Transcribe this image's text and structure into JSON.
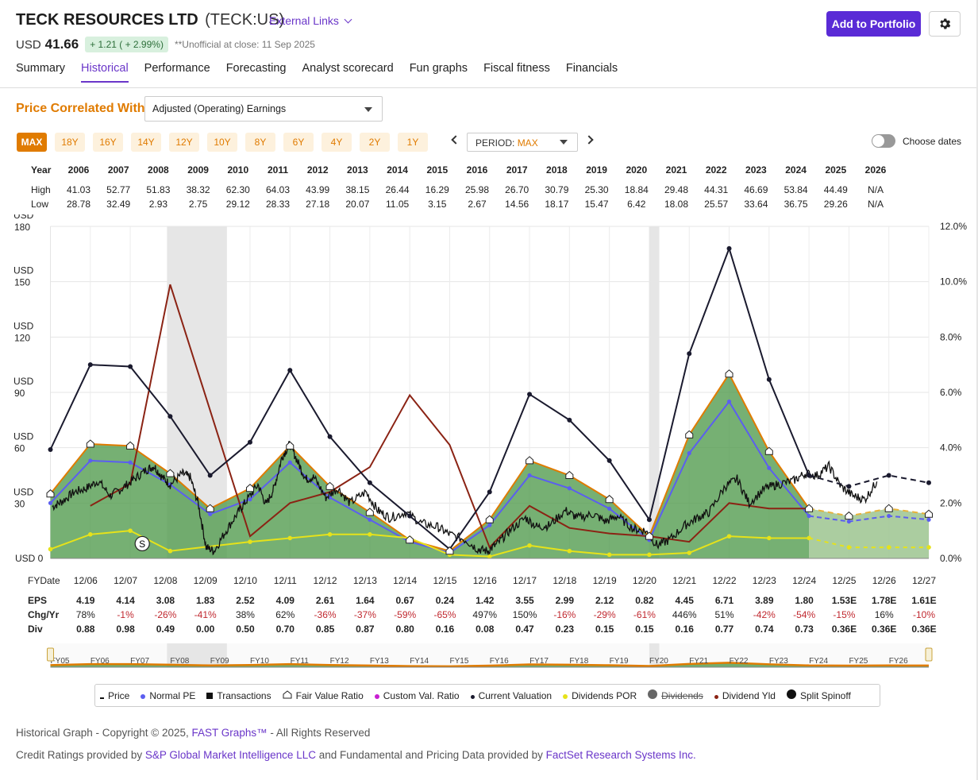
{
  "header": {
    "company": "TECK RESOURCES LTD",
    "ticker": "(TECK:US)",
    "external_links": "External Links",
    "currency": "USD",
    "price": "41.66",
    "change": "+ 1.21 ( + 2.99%)",
    "close_note": "**Unofficial at close: 11 Sep 2025",
    "add_button": "Add to Portfolio",
    "settings_icon": "gear-icon"
  },
  "tabs": [
    "Summary",
    "Historical",
    "Performance",
    "Forecasting",
    "Analyst scorecard",
    "Fun graphs",
    "Fiscal fitness",
    "Financials"
  ],
  "active_tab": "Historical",
  "controls": {
    "price_correlated_label": "Price Correlated With",
    "correlated_value": "Adjusted (Operating) Earnings",
    "range_buttons": [
      "MAX",
      "18Y",
      "16Y",
      "14Y",
      "12Y",
      "10Y",
      "8Y",
      "6Y",
      "4Y",
      "2Y",
      "1Y"
    ],
    "active_range": "MAX",
    "period_label": "PERIOD:",
    "period_value": "MAX",
    "choose_dates": "Choose dates"
  },
  "year_table": {
    "labels": {
      "year": "Year",
      "high": "High",
      "low": "Low"
    },
    "years": [
      "2006",
      "2007",
      "2008",
      "2009",
      "2010",
      "2011",
      "2012",
      "2013",
      "2014",
      "2015",
      "2016",
      "2017",
      "2018",
      "2019",
      "2020",
      "2021",
      "2022",
      "2023",
      "2024",
      "2025",
      "2026"
    ],
    "high": [
      "41.03",
      "52.77",
      "51.83",
      "38.32",
      "62.30",
      "64.03",
      "43.99",
      "38.15",
      "26.44",
      "16.29",
      "25.98",
      "26.70",
      "30.79",
      "25.30",
      "18.84",
      "29.48",
      "44.31",
      "46.69",
      "53.84",
      "44.49",
      "N/A"
    ],
    "low": [
      "28.78",
      "32.49",
      "2.93",
      "2.75",
      "29.12",
      "28.33",
      "27.18",
      "20.07",
      "11.05",
      "3.15",
      "2.67",
      "14.56",
      "18.17",
      "15.47",
      "6.42",
      "18.08",
      "25.57",
      "33.64",
      "36.75",
      "29.26",
      "N/A"
    ]
  },
  "chart_data": {
    "type": "line",
    "y_left_ticks": [
      {
        "top": "USD",
        "bottom": "180",
        "value": 180
      },
      {
        "top": "USD",
        "bottom": "150",
        "value": 150
      },
      {
        "top": "USD",
        "bottom": "120",
        "value": 120
      },
      {
        "top": "USD",
        "bottom": "90",
        "value": 90
      },
      {
        "top": "USD",
        "bottom": "60",
        "value": 60
      },
      {
        "top": "USD",
        "bottom": "30",
        "value": 30
      },
      {
        "top": "USD 0",
        "bottom": "",
        "value": 0
      }
    ],
    "ylim": [
      0,
      180
    ],
    "y_right_ticks": [
      "12.0%",
      "10.0%",
      "8.0%",
      "6.0%",
      "4.0%",
      "2.0%",
      "0.0%"
    ],
    "y2lim": [
      0,
      12
    ],
    "x_labels": [
      "12/06",
      "12/07",
      "12/08",
      "12/09",
      "12/10",
      "12/11",
      "12/12",
      "12/13",
      "12/14",
      "12/15",
      "12/16",
      "12/17",
      "12/18",
      "12/19",
      "12/20",
      "12/21",
      "12/22",
      "12/23",
      "12/24",
      "12/25",
      "12/26",
      "12/27"
    ],
    "x_numeric": [
      2006,
      2007,
      2008,
      2009,
      2010,
      2011,
      2012,
      2013,
      2014,
      2015,
      2016,
      2017,
      2018,
      2019,
      2020,
      2021,
      2022,
      2023,
      2024,
      2025,
      2026,
      2027
    ],
    "x_range": [
      2005,
      2027
    ],
    "recessions": [
      [
        2007.92,
        2009.42
      ],
      [
        2020.0,
        2020.25
      ]
    ],
    "fair_value": [
      [
        2005,
        35
      ],
      [
        2006,
        62
      ],
      [
        2007,
        61
      ],
      [
        2008,
        46
      ],
      [
        2009,
        27
      ],
      [
        2010,
        38
      ],
      [
        2011,
        61
      ],
      [
        2012,
        39
      ],
      [
        2013,
        25
      ],
      [
        2014,
        10
      ],
      [
        2015,
        4
      ],
      [
        2016,
        21
      ],
      [
        2017,
        53
      ],
      [
        2018,
        45
      ],
      [
        2019,
        32
      ],
      [
        2020,
        12
      ],
      [
        2021,
        67
      ],
      [
        2022,
        100
      ],
      [
        2023,
        58
      ],
      [
        2024,
        27
      ],
      [
        2025,
        23
      ],
      [
        2026,
        27
      ],
      [
        2027,
        24
      ]
    ],
    "fair_value_estimated_from": 2024,
    "normal_pe": [
      [
        2005,
        30
      ],
      [
        2006,
        53
      ],
      [
        2007,
        52
      ],
      [
        2008,
        40
      ],
      [
        2009,
        24
      ],
      [
        2010,
        32
      ],
      [
        2011,
        52
      ],
      [
        2012,
        33
      ],
      [
        2013,
        21
      ],
      [
        2014,
        9
      ],
      [
        2015,
        3
      ],
      [
        2016,
        18
      ],
      [
        2017,
        45
      ],
      [
        2018,
        38
      ],
      [
        2019,
        27
      ],
      [
        2020,
        10
      ],
      [
        2021,
        57
      ],
      [
        2022,
        85
      ],
      [
        2023,
        49
      ],
      [
        2024,
        23
      ],
      [
        2025,
        20
      ],
      [
        2026,
        23
      ],
      [
        2027,
        21
      ]
    ],
    "price": [
      [
        2005.05,
        28
      ],
      [
        2005.3,
        31
      ],
      [
        2005.6,
        36
      ],
      [
        2005.9,
        38
      ],
      [
        2006.2,
        42
      ],
      [
        2006.5,
        34
      ],
      [
        2006.8,
        38
      ],
      [
        2007.1,
        43
      ],
      [
        2007.4,
        48
      ],
      [
        2007.6,
        50
      ],
      [
        2007.8,
        44
      ],
      [
        2008.0,
        40
      ],
      [
        2008.3,
        46
      ],
      [
        2008.5,
        44
      ],
      [
        2008.7,
        30
      ],
      [
        2008.9,
        6
      ],
      [
        2009.1,
        4
      ],
      [
        2009.4,
        15
      ],
      [
        2009.7,
        25
      ],
      [
        2009.9,
        31
      ],
      [
        2010.2,
        40
      ],
      [
        2010.4,
        29
      ],
      [
        2010.6,
        38
      ],
      [
        2010.8,
        55
      ],
      [
        2011.0,
        62
      ],
      [
        2011.2,
        52
      ],
      [
        2011.4,
        43
      ],
      [
        2011.6,
        44
      ],
      [
        2011.9,
        33
      ],
      [
        2012.2,
        38
      ],
      [
        2012.5,
        30
      ],
      [
        2012.9,
        36
      ],
      [
        2013.2,
        26
      ],
      [
        2013.5,
        22
      ],
      [
        2013.9,
        25
      ],
      [
        2014.3,
        19
      ],
      [
        2014.7,
        17
      ],
      [
        2015.0,
        13
      ],
      [
        2015.4,
        10
      ],
      [
        2015.7,
        5
      ],
      [
        2015.95,
        4
      ],
      [
        2016.2,
        8
      ],
      [
        2016.5,
        15
      ],
      [
        2016.9,
        22
      ],
      [
        2017.2,
        17
      ],
      [
        2017.5,
        18
      ],
      [
        2017.9,
        26
      ],
      [
        2018.2,
        22
      ],
      [
        2018.6,
        24
      ],
      [
        2018.9,
        20
      ],
      [
        2019.2,
        23
      ],
      [
        2019.6,
        16
      ],
      [
        2019.9,
        15
      ],
      [
        2020.2,
        7
      ],
      [
        2020.5,
        10
      ],
      [
        2020.9,
        18
      ],
      [
        2021.2,
        22
      ],
      [
        2021.5,
        25
      ],
      [
        2021.9,
        39
      ],
      [
        2022.2,
        43
      ],
      [
        2022.5,
        30
      ],
      [
        2022.9,
        38
      ],
      [
        2023.2,
        40
      ],
      [
        2023.6,
        42
      ],
      [
        2023.9,
        46
      ],
      [
        2024.2,
        45
      ],
      [
        2024.5,
        50
      ],
      [
        2024.8,
        39
      ],
      [
        2025.1,
        34
      ],
      [
        2025.4,
        32
      ],
      [
        2025.7,
        41.66
      ]
    ],
    "current_valuation": [
      [
        2005,
        59
      ],
      [
        2006,
        105
      ],
      [
        2007,
        104
      ],
      [
        2008,
        77
      ],
      [
        2009,
        45
      ],
      [
        2010,
        63
      ],
      [
        2011,
        102
      ],
      [
        2012,
        66
      ],
      [
        2013,
        41
      ],
      [
        2014,
        23
      ],
      [
        2015,
        5
      ],
      [
        2016,
        36
      ],
      [
        2017,
        89
      ],
      [
        2018,
        75
      ],
      [
        2019,
        53
      ],
      [
        2020,
        21
      ],
      [
        2021,
        111
      ],
      [
        2022,
        168
      ],
      [
        2023,
        97
      ],
      [
        2024,
        45
      ],
      [
        2025,
        39
      ],
      [
        2026,
        45
      ],
      [
        2027,
        41
      ]
    ],
    "dividend_yld_pct": [
      [
        2006,
        1.9
      ],
      [
        2007,
        2.7
      ],
      [
        2008,
        9.9
      ],
      [
        2010,
        0.8
      ],
      [
        2011,
        2.0
      ],
      [
        2012,
        2.4
      ],
      [
        2013,
        3.3
      ],
      [
        2014,
        5.9
      ],
      [
        2015,
        4.1
      ],
      [
        2016,
        0.4
      ],
      [
        2017,
        1.9
      ],
      [
        2018,
        1.1
      ],
      [
        2019,
        0.9
      ],
      [
        2020,
        0.8
      ],
      [
        2021,
        0.6
      ],
      [
        2022,
        2.0
      ],
      [
        2023,
        1.8
      ],
      [
        2024,
        1.8
      ]
    ],
    "dividends_por": [
      [
        2005,
        5
      ],
      [
        2006,
        13
      ],
      [
        2007,
        15
      ],
      [
        2008,
        4
      ],
      [
        2010,
        9
      ],
      [
        2011,
        11
      ],
      [
        2012,
        13
      ],
      [
        2013,
        13
      ],
      [
        2014,
        11
      ],
      [
        2015,
        2
      ],
      [
        2016,
        1
      ],
      [
        2017,
        7
      ],
      [
        2018,
        4
      ],
      [
        2019,
        2
      ],
      [
        2020,
        2
      ],
      [
        2021,
        3
      ],
      [
        2022,
        12
      ],
      [
        2023,
        11
      ],
      [
        2024,
        11
      ],
      [
        2025,
        6
      ],
      [
        2026,
        6
      ],
      [
        2027,
        6
      ]
    ],
    "split_spinoff": [
      {
        "x": 2007.3,
        "y": 8,
        "label": "S"
      }
    ]
  },
  "bottom_table": {
    "fy_label": "FYDate",
    "eps_label": "EPS",
    "chg_label": "Chg/Yr",
    "div_label": "Div",
    "eps": [
      "4.19",
      "4.14",
      "3.08",
      "1.83",
      "2.52",
      "4.09",
      "2.61",
      "1.64",
      "0.67",
      "0.24",
      "1.42",
      "3.55",
      "2.99",
      "2.12",
      "0.82",
      "4.45",
      "6.71",
      "3.89",
      "1.80",
      "1.53E",
      "1.78E",
      "1.61E"
    ],
    "chg": [
      "78%",
      "-1%",
      "-26%",
      "-41%",
      "38%",
      "62%",
      "-36%",
      "-37%",
      "-59%",
      "-65%",
      "497%",
      "150%",
      "-16%",
      "-29%",
      "-61%",
      "446%",
      "51%",
      "-42%",
      "-54%",
      "-15%",
      "16%",
      "-10%"
    ],
    "div": [
      "0.88",
      "0.98",
      "0.49",
      "0.00",
      "0.50",
      "0.70",
      "0.85",
      "0.87",
      "0.80",
      "0.16",
      "0.08",
      "0.47",
      "0.23",
      "0.15",
      "0.15",
      "0.16",
      "0.77",
      "0.74",
      "0.73",
      "0.36E",
      "0.36E",
      "0.36E"
    ]
  },
  "navigator": {
    "fy_labels": [
      "FY05",
      "FY06",
      "FY07",
      "FY08",
      "FY09",
      "FY10",
      "FY11",
      "FY12",
      "FY13",
      "FY14",
      "FY15",
      "FY16",
      "FY17",
      "FY18",
      "FY19",
      "FY20",
      "FY21",
      "FY22",
      "FY23",
      "FY24",
      "FY25",
      "FY26"
    ]
  },
  "legend": [
    "Price",
    "Normal PE",
    "Transactions",
    "Fair Value Ratio",
    "Custom Val. Ratio",
    "Current Valuation",
    "Dividends POR",
    "Dividends",
    "Dividend Yld",
    "Split Spinoff"
  ],
  "colors": {
    "accent": "#5a2bd6",
    "orange": "#e07b00",
    "fair_value_fill": "#4f9a4c",
    "normal_pe": "#5b5ef0",
    "dividend_yld": "#8b2314",
    "dividends_por": "#e6e21a",
    "price": "#111111"
  },
  "footer": {
    "line1_pre": "Historical Graph - Copyright © 2025, ",
    "line1_link": "FAST Graphs™",
    "line1_post": " - All Rights Reserved",
    "line2_pre": "Credit Ratings provided by ",
    "line2_link1": "S&P Global Market Intelligence LLC",
    "line2_mid": " and Fundamental and Pricing Data provided by ",
    "line2_link2": "FactSet Research Systems Inc."
  }
}
